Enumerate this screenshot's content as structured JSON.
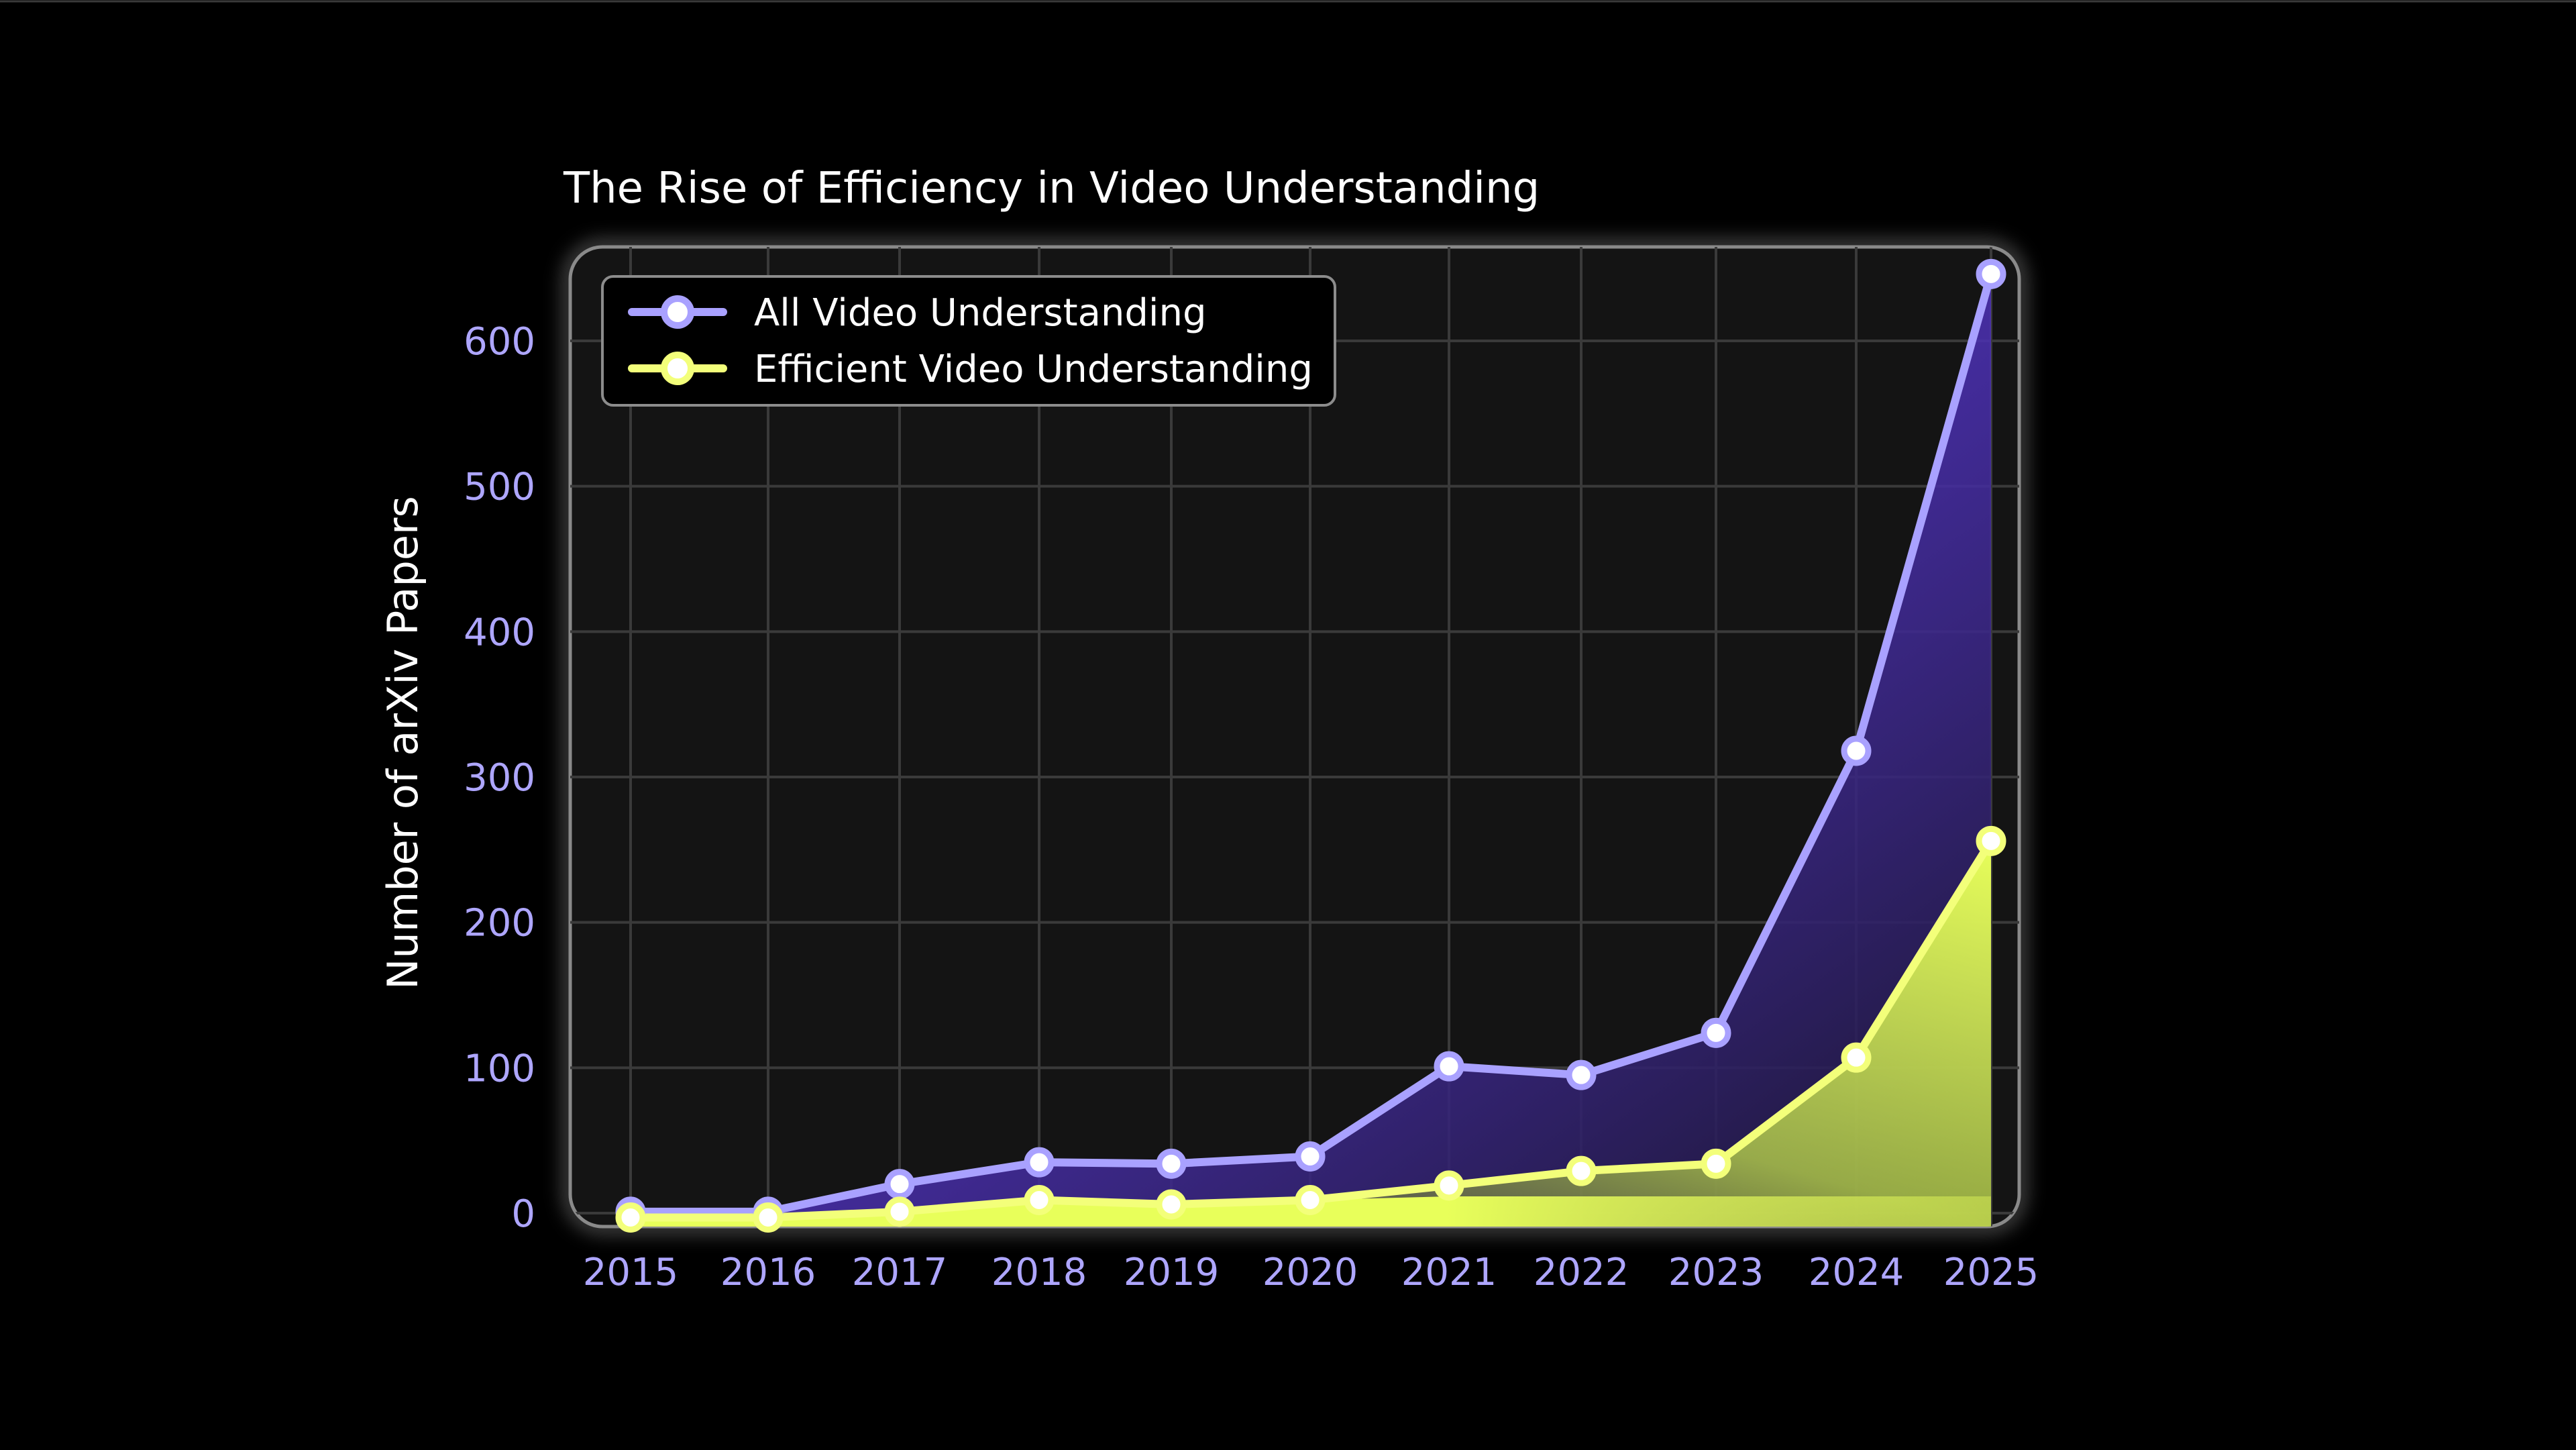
{
  "chart_data": {
    "type": "area",
    "title": "The Rise of Efficiency in Video Understanding",
    "xlabel": "",
    "ylabel": "Number of arXiv Papers",
    "x": [
      "2015",
      "2016",
      "2017",
      "2018",
      "2019",
      "2020",
      "2021",
      "2022",
      "2023",
      "2024",
      "2025"
    ],
    "y_ticks": [
      "0",
      "100",
      "200",
      "300",
      "400",
      "500",
      "600"
    ],
    "ylim": [
      -10,
      660
    ],
    "grid": true,
    "legend_position": "top-left",
    "series": [
      {
        "name": "All Video Understanding",
        "values": [
          1,
          1,
          20,
          35,
          34,
          39,
          101,
          95,
          124,
          318,
          646
        ],
        "color": "#a9a1ff",
        "fill": "#6a3cf0"
      },
      {
        "name": "Efficient Video Understanding",
        "values": [
          -3,
          -3,
          1,
          9,
          6,
          9,
          19,
          29,
          34,
          107,
          256
        ],
        "color": "#f3ff7a",
        "fill": "#d8ff4a"
      }
    ]
  }
}
